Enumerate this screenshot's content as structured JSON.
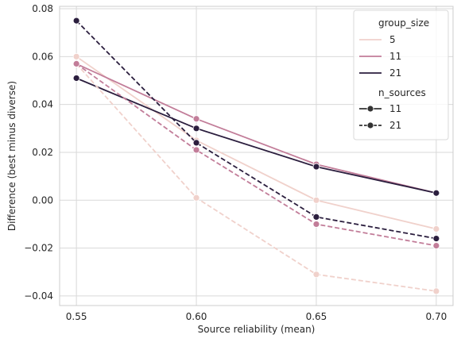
{
  "chart_data": {
    "type": "line",
    "xlabel": "Source reliability (mean)",
    "ylabel": "Difference (best minus diverse)",
    "xlim": [
      0.543,
      0.707
    ],
    "ylim": [
      -0.044,
      0.081
    ],
    "x_ticks": [
      "0.55",
      "0.60",
      "0.65",
      "0.70"
    ],
    "x_tick_values": [
      0.55,
      0.6,
      0.65,
      0.7
    ],
    "y_ticks": [
      "−0.04",
      "−0.02",
      "0.00",
      "0.02",
      "0.04",
      "0.06",
      "0.08"
    ],
    "y_tick_values": [
      -0.04,
      -0.02,
      0.0,
      0.02,
      0.04,
      0.06,
      0.08
    ],
    "grid": true,
    "legend_placement": "top-right",
    "x": [
      0.55,
      0.6,
      0.65,
      0.7
    ],
    "series": [
      {
        "group_size": "5",
        "n_sources": "11",
        "color": "#f0d1cb",
        "dash": "solid",
        "values": [
          0.06,
          0.025,
          0.0,
          -0.012
        ]
      },
      {
        "group_size": "11",
        "n_sources": "11",
        "color": "#c27d99",
        "dash": "solid",
        "values": [
          0.057,
          0.034,
          0.015,
          0.003
        ]
      },
      {
        "group_size": "21",
        "n_sources": "11",
        "color": "#2b1e3e",
        "dash": "solid",
        "values": [
          0.051,
          0.03,
          0.014,
          0.003
        ]
      },
      {
        "group_size": "5",
        "n_sources": "21",
        "color": "#f0d1cb",
        "dash": "dashed",
        "values": [
          0.057,
          0.001,
          -0.031,
          -0.038
        ]
      },
      {
        "group_size": "11",
        "n_sources": "21",
        "color": "#c27d99",
        "dash": "dashed",
        "values": [
          0.057,
          0.021,
          -0.01,
          -0.019
        ]
      },
      {
        "group_size": "21",
        "n_sources": "21",
        "color": "#2b1e3e",
        "dash": "dashed",
        "values": [
          0.075,
          0.024,
          -0.007,
          -0.016
        ]
      }
    ],
    "legend": {
      "hue_title": "group_size",
      "hue_entries": [
        {
          "label": "5",
          "color": "#f0d1cb"
        },
        {
          "label": "11",
          "color": "#c27d99"
        },
        {
          "label": "21",
          "color": "#2b1e3e"
        }
      ],
      "style_title": "n_sources",
      "style_entries": [
        {
          "label": "11",
          "dash": "solid",
          "color": "#333333"
        },
        {
          "label": "21",
          "dash": "dashed",
          "color": "#333333"
        }
      ]
    }
  }
}
